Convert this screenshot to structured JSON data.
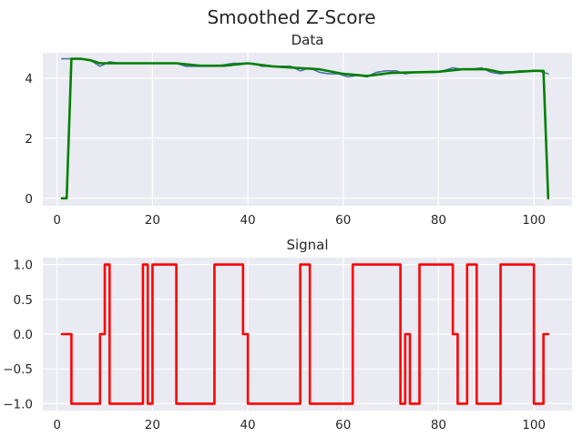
{
  "chart_data": {
    "title": "Smoothed Z-Score",
    "colors": {
      "background": "#eaeaf2",
      "grid": "#ffffff",
      "data": "#4c72b0",
      "filter": "#008000",
      "signal": "#ff0000"
    },
    "panels": [
      {
        "type": "line",
        "title": "Data",
        "xlim": [
          -3,
          108
        ],
        "ylim": [
          -0.25,
          4.85
        ],
        "xticks": [
          0,
          20,
          40,
          60,
          80,
          100
        ],
        "yticks": [
          0,
          2,
          4
        ],
        "grid": true,
        "series": [
          {
            "color": "#4c72b0",
            "x": [
              1,
              5,
              7,
              9,
              11,
              13,
              15,
              17,
              19,
              21,
              23,
              25,
              27,
              29,
              31,
              33,
              35,
              37,
              39,
              41,
              43,
              45,
              47,
              49,
              51,
              53,
              55,
              57,
              59,
              61,
              63,
              65,
              67,
              69,
              71,
              73,
              75,
              77,
              79,
              81,
              83,
              85,
              87,
              89,
              91,
              93,
              95,
              97,
              99,
              101,
              103
            ],
            "y": [
              4.65,
              4.65,
              4.6,
              4.4,
              4.55,
              4.5,
              4.5,
              4.5,
              4.5,
              4.5,
              4.5,
              4.5,
              4.4,
              4.4,
              4.4,
              4.4,
              4.45,
              4.5,
              4.5,
              4.5,
              4.4,
              4.4,
              4.4,
              4.4,
              4.25,
              4.35,
              4.2,
              4.15,
              4.15,
              4.05,
              4.1,
              4.05,
              4.2,
              4.25,
              4.25,
              4.15,
              4.2,
              4.2,
              4.2,
              4.25,
              4.35,
              4.3,
              4.3,
              4.35,
              4.2,
              4.15,
              4.2,
              4.25,
              4.25,
              4.25,
              4.15
            ]
          },
          {
            "color": "#008000",
            "x": [
              1,
              2,
              3,
              5,
              7,
              9,
              11,
              15,
              20,
              25,
              30,
              35,
              40,
              45,
              50,
              55,
              60,
              65,
              70,
              75,
              80,
              85,
              90,
              93,
              95,
              100,
              101,
              102,
              103
            ],
            "y": [
              0,
              0,
              4.65,
              4.65,
              4.6,
              4.5,
              4.5,
              4.5,
              4.5,
              4.5,
              4.42,
              4.42,
              4.5,
              4.4,
              4.35,
              4.3,
              4.15,
              4.08,
              4.18,
              4.2,
              4.22,
              4.3,
              4.3,
              4.2,
              4.2,
              4.25,
              4.25,
              4.25,
              0
            ]
          }
        ]
      },
      {
        "type": "line",
        "title": "Signal",
        "xlim": [
          -3,
          108
        ],
        "ylim": [
          -1.1,
          1.1
        ],
        "xticks": [
          0,
          20,
          40,
          60,
          80,
          100
        ],
        "yticks": [
          1.0,
          0.5,
          0.0,
          -0.5,
          -1.0
        ],
        "ytick_labels": [
          "1.0",
          "0.5",
          "0.0",
          "−0.5",
          "−1.0"
        ],
        "grid": true,
        "series": [
          {
            "color": "#ff0000",
            "step": true,
            "x": [
              1,
              3,
              9,
              10,
              11,
              18,
              19,
              20,
              25,
              33,
              39,
              40,
              51,
              53,
              62,
              72,
              73,
              74,
              76,
              83,
              84,
              86,
              88,
              93,
              100,
              102,
              103
            ],
            "y": [
              0,
              -1,
              0,
              1,
              -1,
              1,
              -1,
              1,
              -1,
              1,
              0,
              -1,
              1,
              -1,
              1,
              -1,
              0,
              -1,
              1,
              0,
              -1,
              1,
              -1,
              1,
              -1,
              0,
              0
            ]
          }
        ]
      }
    ]
  }
}
